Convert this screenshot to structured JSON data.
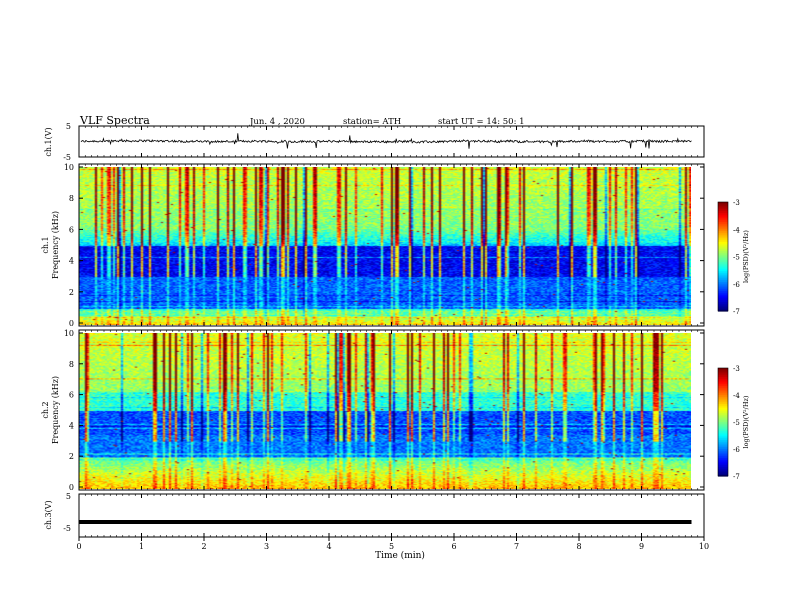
{
  "header": {
    "title": "VLF  Spectra",
    "date": "Jun. 4  , 2020",
    "station": "station= ATH",
    "start_time": "start  UT  =   14: 50: 1"
  },
  "chart_data": [
    {
      "type": "line",
      "panel": "ch1-waveform",
      "ylabel": "ch.1(V)",
      "xlim": [
        0,
        10
      ],
      "ylim": [
        -5,
        5
      ],
      "yticks": [
        "5",
        "-5"
      ],
      "y_approx_level": 0
    },
    {
      "type": "heatmap",
      "panel": "ch1-spectrogram",
      "ylabel": "ch.1\nFrequency (kHz)",
      "xlim": [
        0,
        10
      ],
      "ylim": [
        0,
        10
      ],
      "yticks": [
        "0",
        "2",
        "4",
        "6",
        "8",
        "10"
      ],
      "colorbar": {
        "label": "log(PSD)(V²/Hz)",
        "range": [
          -7,
          -3
        ],
        "ticks": [
          "-3",
          "-4",
          "-5",
          "-6",
          "-7"
        ]
      },
      "data_end_min": 9.8
    },
    {
      "type": "heatmap",
      "panel": "ch2-spectrogram",
      "ylabel": "ch.2\nFrequency (kHz)",
      "xlim": [
        0,
        10
      ],
      "ylim": [
        0,
        10
      ],
      "yticks": [
        "0",
        "2",
        "4",
        "6",
        "8",
        "10"
      ],
      "colorbar": {
        "label": "log(PSD)(V²/Hz)",
        "range": [
          -7,
          -3
        ],
        "ticks": [
          "-3",
          "-4",
          "-5",
          "-6",
          "-7"
        ]
      },
      "data_end_min": 9.8
    },
    {
      "type": "line",
      "panel": "ch3-waveform",
      "ylabel": "ch.3(V)",
      "xlim": [
        0,
        10
      ],
      "ylim": [
        -5,
        5
      ],
      "yticks": [
        "5",
        "-5"
      ],
      "y_approx_level": -1.5
    }
  ],
  "x_axis": {
    "label": "Time  (min)",
    "ticks": [
      "0",
      "1",
      "2",
      "3",
      "4",
      "5",
      "6",
      "7",
      "8",
      "9",
      "10"
    ]
  },
  "colors": {
    "background": "#ffffff",
    "axis": "#000000"
  }
}
